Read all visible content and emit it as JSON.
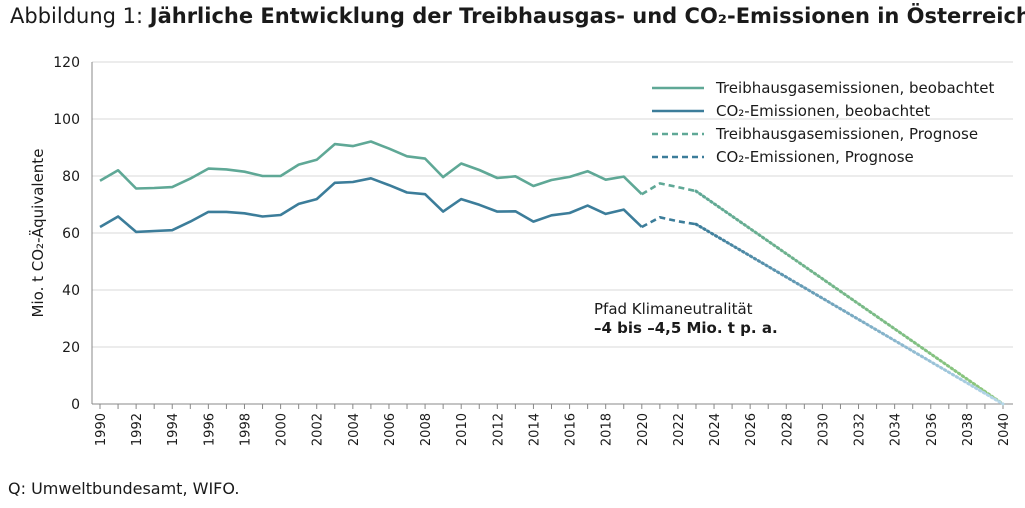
{
  "title": {
    "prefix": "Abbildung 1: ",
    "main": "Jährliche Entwicklung der Treibhausgas- und CO₂-Emissionen in Österreich"
  },
  "source": "Q: Umweltbundesamt, WIFO.",
  "chart_data": {
    "type": "line",
    "ylabel": "Mio. t CO₂-Äquivalente",
    "xlabel": "",
    "ylim": [
      0,
      120
    ],
    "yticks": [
      0,
      20,
      40,
      60,
      80,
      100,
      120
    ],
    "xlim": [
      1990,
      2040
    ],
    "xticks": [
      "1990",
      "1992",
      "1994",
      "1996",
      "1998",
      "2000",
      "2002",
      "2004",
      "2006",
      "2008",
      "2010",
      "2012",
      "2014",
      "2016",
      "2018",
      "2020",
      "2022",
      "2024",
      "2026",
      "2028",
      "2030",
      "2032",
      "2034",
      "2036",
      "2038",
      "2040"
    ],
    "grid": "horizontal",
    "legend_position": "top-right",
    "series": [
      {
        "name": "Treibhausgasemissionen, beobachtet",
        "style": "solid",
        "color": "#5fa896",
        "x": [
          1990,
          1991,
          1992,
          1993,
          1994,
          1995,
          1996,
          1997,
          1998,
          1999,
          2000,
          2001,
          2002,
          2003,
          2004,
          2005,
          2006,
          2007,
          2008,
          2009,
          2010,
          2011,
          2012,
          2013,
          2014,
          2015,
          2016,
          2017,
          2018,
          2019,
          2020
        ],
        "y": [
          78.3,
          82.0,
          75.6,
          75.8,
          76.1,
          79.1,
          82.6,
          82.3,
          81.5,
          80.0,
          80.0,
          84.0,
          85.7,
          91.2,
          90.5,
          92.1,
          89.6,
          86.9,
          86.1,
          79.6,
          84.4,
          82.1,
          79.3,
          79.9,
          76.5,
          78.6,
          79.7,
          81.7,
          78.7,
          79.8,
          73.6
        ]
      },
      {
        "name": "CO₂-Emissionen, beobachtet",
        "style": "solid",
        "color": "#3c7d9a",
        "x": [
          1990,
          1991,
          1992,
          1993,
          1994,
          1995,
          1996,
          1997,
          1998,
          1999,
          2000,
          2001,
          2002,
          2003,
          2004,
          2005,
          2006,
          2007,
          2008,
          2009,
          2010,
          2011,
          2012,
          2013,
          2014,
          2015,
          2016,
          2017,
          2018,
          2019,
          2020
        ],
        "y": [
          62.1,
          65.8,
          60.4,
          60.7,
          61.0,
          64.0,
          67.4,
          67.4,
          66.9,
          65.8,
          66.3,
          70.2,
          71.9,
          77.6,
          77.9,
          79.2,
          76.8,
          74.2,
          73.6,
          67.5,
          71.9,
          69.9,
          67.5,
          67.6,
          64.0,
          66.2,
          67.0,
          69.6,
          66.7,
          68.2,
          62.1
        ]
      },
      {
        "name": "Treibhausgasemissionen, Prognose",
        "style": "dashed",
        "color": "#5fa896",
        "x": [
          2020,
          2021,
          2022,
          2023
        ],
        "y": [
          73.6,
          77.4,
          76.1,
          74.7
        ]
      },
      {
        "name": "CO₂-Emissionen, Prognose",
        "style": "dashed",
        "color": "#3c7d9a",
        "x": [
          2020,
          2021,
          2022,
          2023
        ],
        "y": [
          62.1,
          65.5,
          64.1,
          63.1
        ]
      }
    ],
    "pathways": [
      {
        "label_for": "Treibhausgasemissionen, Prognose",
        "style": "dotted-gradient",
        "color_start": "#5fa896",
        "color_end": "#8fc97a",
        "x": [
          2023,
          2040
        ],
        "y": [
          74.7,
          0
        ]
      },
      {
        "label_for": "CO₂-Emissionen, Prognose",
        "style": "dotted-gradient",
        "color_start": "#3c7d9a",
        "color_end": "#b6d7ea",
        "x": [
          2023,
          2040
        ],
        "y": [
          63.1,
          0
        ]
      }
    ],
    "annotation": {
      "line1": "Pfad Klimaneutralität",
      "line2": "–4 bis –4,5 Mio. t p. a."
    }
  }
}
